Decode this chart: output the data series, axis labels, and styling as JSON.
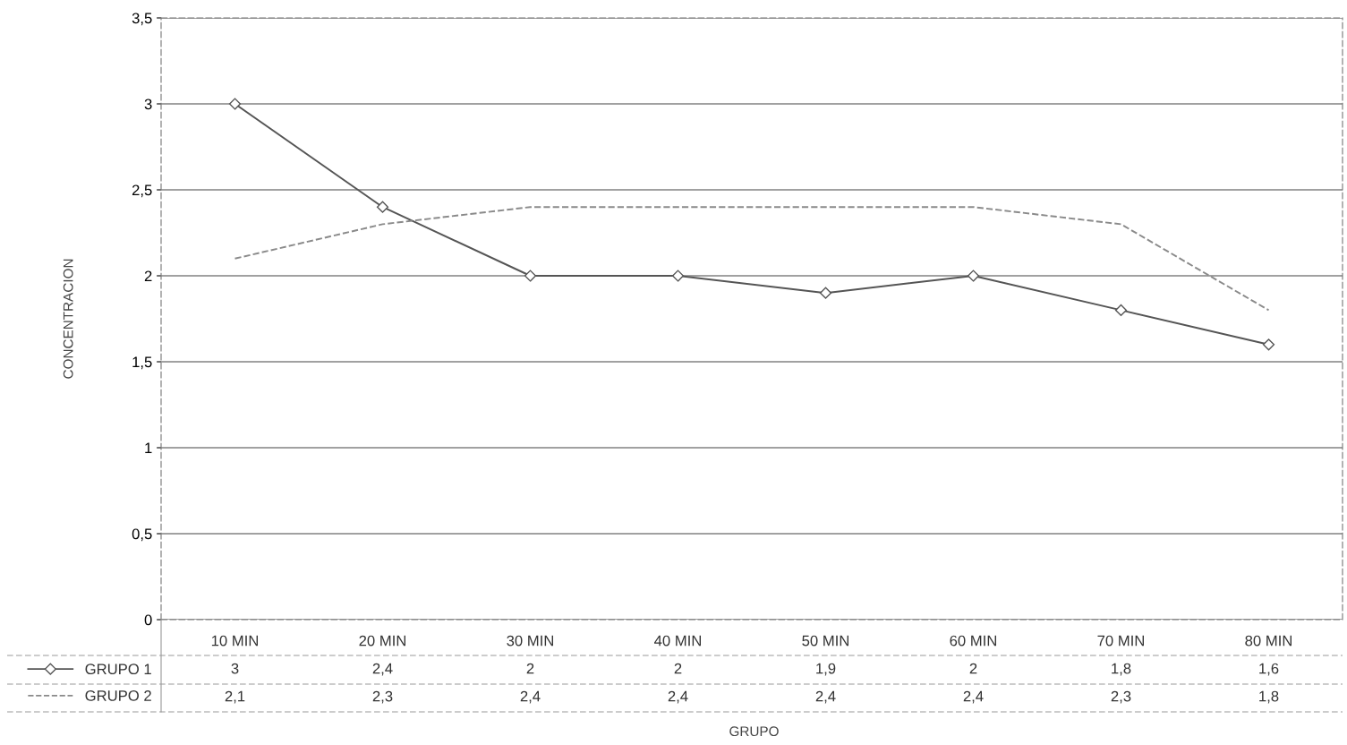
{
  "chart_data": {
    "type": "line",
    "annotations": [
      "GRUPO"
    ],
    "ylabel": "CONCENTRACION",
    "categories": [
      "10 MIN",
      "20 MIN",
      "30 MIN",
      "40 MIN",
      "50 MIN",
      "60 MIN",
      "70 MIN",
      "80 MIN"
    ],
    "series": [
      {
        "name": "GRUPO 1",
        "color": "#555555",
        "marker": "diamond",
        "line_style": "solid",
        "values": [
          3,
          2.4,
          2,
          2,
          1.9,
          2,
          1.8,
          1.6
        ],
        "value_labels": [
          "3",
          "2,4",
          "2",
          "2",
          "1,9",
          "2",
          "1,8",
          "1,6"
        ]
      },
      {
        "name": "GRUPO 2",
        "color": "#8a8a8a",
        "marker": "none",
        "line_style": "dashed",
        "values": [
          2.1,
          2.3,
          2.4,
          2.4,
          2.4,
          2.4,
          2.3,
          1.8
        ],
        "value_labels": [
          "2,1",
          "2,3",
          "2,4",
          "2,4",
          "2,4",
          "2,4",
          "2,3",
          "1,8"
        ]
      }
    ],
    "ylim": [
      0,
      3.5
    ],
    "yticks": [
      0,
      {
        "value": 0.5,
        "label": "0,5"
      },
      1,
      {
        "value": 1.5,
        "label": "1,5"
      },
      2,
      {
        "value": 2.5,
        "label": "2,5"
      },
      3,
      {
        "value": 3.5,
        "label": "3,5"
      }
    ],
    "grid": "y",
    "legend": "bottom left"
  }
}
